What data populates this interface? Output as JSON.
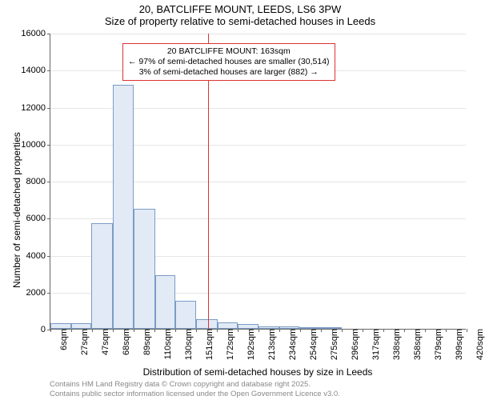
{
  "title_line1": "20, BATCLIFFE MOUNT, LEEDS, LS6 3PW",
  "title_line2": "Size of property relative to semi-detached houses in Leeds",
  "chart": {
    "type": "histogram",
    "y_axis_label": "Number of semi-detached properties",
    "x_axis_label": "Distribution of semi-detached houses by size in Leeds",
    "ylim": [
      0,
      16000
    ],
    "ytick_step": 2000,
    "y_ticks": [
      0,
      2000,
      4000,
      6000,
      8000,
      10000,
      12000,
      14000,
      16000
    ],
    "x_labels": [
      "6sqm",
      "27sqm",
      "47sqm",
      "68sqm",
      "89sqm",
      "110sqm",
      "130sqm",
      "151sqm",
      "172sqm",
      "192sqm",
      "213sqm",
      "234sqm",
      "254sqm",
      "275sqm",
      "296sqm",
      "317sqm",
      "338sqm",
      "358sqm",
      "379sqm",
      "399sqm",
      "420sqm"
    ],
    "x_min_sqm": 6,
    "x_max_sqm": 420,
    "bars": [
      {
        "x0": 6,
        "x1": 27,
        "count": 300
      },
      {
        "x0": 27,
        "x1": 47,
        "count": 300
      },
      {
        "x0": 47,
        "x1": 68,
        "count": 5700
      },
      {
        "x0": 68,
        "x1": 89,
        "count": 13200
      },
      {
        "x0": 89,
        "x1": 110,
        "count": 6500
      },
      {
        "x0": 110,
        "x1": 130,
        "count": 2900
      },
      {
        "x0": 130,
        "x1": 151,
        "count": 1500
      },
      {
        "x0": 151,
        "x1": 172,
        "count": 500
      },
      {
        "x0": 172,
        "x1": 192,
        "count": 350
      },
      {
        "x0": 192,
        "x1": 213,
        "count": 250
      },
      {
        "x0": 213,
        "x1": 234,
        "count": 150
      },
      {
        "x0": 234,
        "x1": 254,
        "count": 120
      },
      {
        "x0": 254,
        "x1": 275,
        "count": 100
      },
      {
        "x0": 275,
        "x1": 296,
        "count": 80
      },
      {
        "x0": 296,
        "x1": 317,
        "count": 0
      },
      {
        "x0": 317,
        "x1": 338,
        "count": 0
      },
      {
        "x0": 338,
        "x1": 358,
        "count": 0
      },
      {
        "x0": 358,
        "x1": 379,
        "count": 0
      },
      {
        "x0": 379,
        "x1": 399,
        "count": 0
      },
      {
        "x0": 399,
        "x1": 420,
        "count": 0
      }
    ],
    "reference_line_sqm": 163,
    "annotation": {
      "line1": "20 BATCLIFFE MOUNT: 163sqm",
      "line2": "← 97% of semi-detached houses are smaller (30,514)",
      "line3": "3% of semi-detached houses are larger (882) →"
    },
    "bar_fill": "#e2eaf6",
    "bar_stroke": "#7a9cc6",
    "ref_line_color": "#d33",
    "grid_color": "#e5e5e5",
    "axis_color": "#666666",
    "background_color": "#ffffff",
    "title_fontsize": 13,
    "axis_label_fontsize": 12,
    "tick_fontsize": 11,
    "annotation_fontsize": 10.5
  },
  "footer_line1": "Contains HM Land Registry data © Crown copyright and database right 2025.",
  "footer_line2": "Contains public sector information licensed under the Open Government Licence v3.0."
}
